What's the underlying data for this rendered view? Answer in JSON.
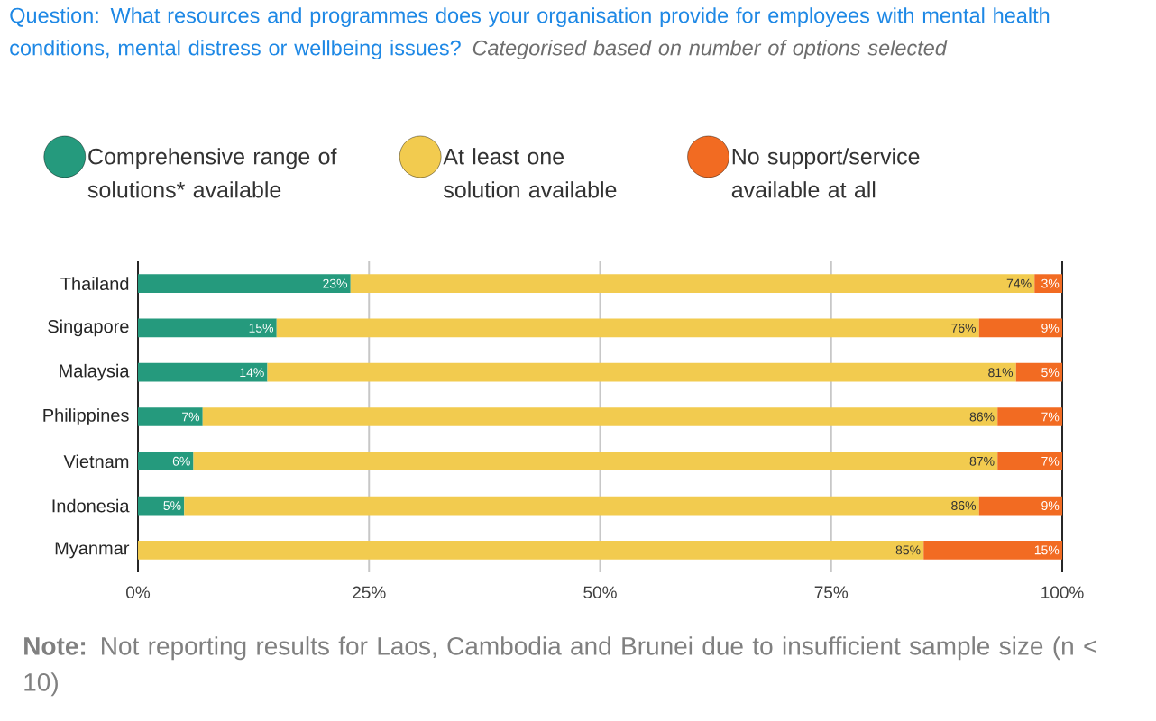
{
  "chart_data": {
    "type": "bar",
    "orientation": "horizontal",
    "stacked": true,
    "title": "Question: What resources and programmes does your organisation provide for employees with mental health conditions, mental distress or wellbeing issues?",
    "subtitle": "Categorised based on number of options selected",
    "categories": [
      "Thailand",
      "Singapore",
      "Malaysia",
      "Philippines",
      "Vietnam",
      "Indonesia",
      "Myanmar"
    ],
    "series": [
      {
        "name": "Comprehensive range of solutions* available",
        "color": "#259a7d",
        "values": [
          23,
          15,
          14,
          7,
          6,
          5,
          null
        ],
        "value_labels": [
          "23%",
          "15%",
          "14%",
          "7%",
          "6%",
          "5%",
          null
        ]
      },
      {
        "name": "At least one solution available",
        "color": "#f2cb4f",
        "values": [
          74,
          76,
          81,
          86,
          87,
          86,
          85
        ],
        "value_labels": [
          "74%",
          "76%",
          "81%",
          "86%",
          "87%",
          "86%",
          "85%"
        ]
      },
      {
        "name": "No support/service available at all",
        "color": "#f26b22",
        "values": [
          3,
          9,
          5,
          7,
          7,
          9,
          15
        ],
        "value_labels": [
          "3%",
          "9%",
          "5%",
          "7%",
          "7%",
          "9%",
          "15%"
        ]
      }
    ],
    "xlim": [
      0,
      100
    ],
    "xticks": [
      {
        "value": 0,
        "label": "0%"
      },
      {
        "value": 25,
        "label": "25%"
      },
      {
        "value": 50,
        "label": "50%"
      },
      {
        "value": 75,
        "label": "75%"
      },
      {
        "value": 100,
        "label": "100%"
      }
    ],
    "grid": "x",
    "legend": "top",
    "annotations": [
      "**Note:** Not reporting results for Laos, Cambodia and Brunei due to insufficient sample size (n < 10)"
    ]
  }
}
